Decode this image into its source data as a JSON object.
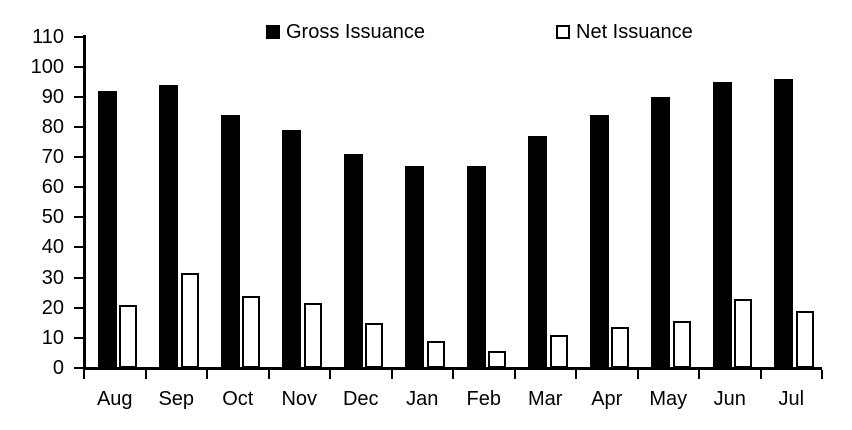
{
  "chart_data": {
    "type": "bar",
    "title": "",
    "categories": [
      "Aug",
      "Sep",
      "Oct",
      "Nov",
      "Dec",
      "Jan",
      "Feb",
      "Mar",
      "Apr",
      "May",
      "Jun",
      "Jul"
    ],
    "series": [
      {
        "name": "Gross Issuance",
        "fill": "#000000",
        "stroke": "#000000",
        "values": [
          92,
          94,
          84,
          79,
          71,
          67,
          67,
          77,
          84,
          90,
          95,
          96
        ]
      },
      {
        "name": "Net Issuance",
        "fill": "#ffffff",
        "stroke": "#000000",
        "values": [
          21,
          31.5,
          24,
          21.5,
          15,
          9,
          5.5,
          11,
          13.5,
          15.5,
          23,
          19
        ]
      }
    ],
    "xlabel": "",
    "ylabel": "",
    "ylim": [
      0,
      110
    ],
    "ytick_step": 10,
    "ytick_labels": [
      "0",
      "10",
      "20",
      "30",
      "40",
      "50",
      "60",
      "70",
      "80",
      "90",
      "100",
      "110"
    ],
    "grid": false,
    "legend_position": "top"
  },
  "colors": {
    "background": "#ffffff",
    "bar_gross": "#000000",
    "bar_net_fill": "#ffffff",
    "bar_net_border": "#000000",
    "axis": "#000000",
    "text": "#000000"
  }
}
